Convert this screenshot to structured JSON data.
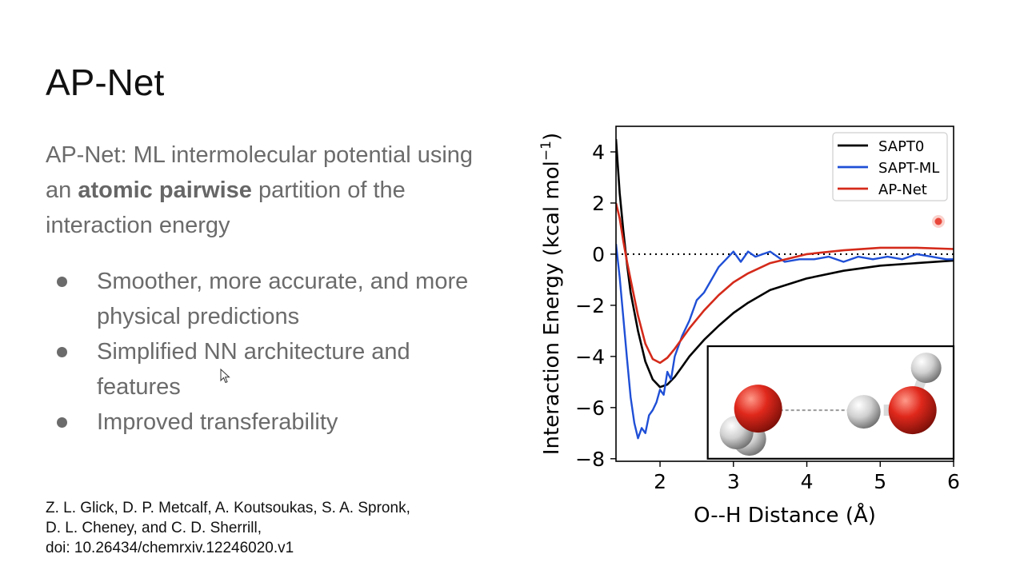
{
  "slide": {
    "title": "AP-Net",
    "subtitle": {
      "before": "AP-Net: ML intermolecular potential using an ",
      "bold": "atomic pairwise",
      "after": " partition of the interaction energy"
    },
    "bullets": [
      "Smoother, more accurate, and more physical predictions",
      "Simplified NN architecture and features",
      "Improved transferability"
    ],
    "citation": {
      "line1": "Z. L. Glick, D. P. Metcalf, A. Koutsoukas, S. A. Spronk,",
      "line2": "D. L. Cheney, and C. D. Sherrill,",
      "line3": "doi: 10.26434/chemrxiv.12246020.v1"
    }
  },
  "chart_data": {
    "type": "line",
    "xlabel": "O--H Distance (Å)",
    "ylabel": "Interaction Energy (kcal mol",
    "ylabel_sup": "−1",
    "ylabel_close": ")",
    "xlim": [
      1.4,
      6.0
    ],
    "ylim": [
      -8.1,
      5.0
    ],
    "xticks": [
      2,
      3,
      4,
      5,
      6
    ],
    "yticks": [
      4,
      2,
      0,
      -2,
      -4,
      -6,
      -8
    ],
    "ytick_labels": [
      "4",
      "2",
      "0",
      "−2",
      "−4",
      "−6",
      "−8"
    ],
    "legend_position": "top-right",
    "zero_line": "dotted",
    "series": [
      {
        "name": "SAPT0",
        "color": "#000000",
        "x": [
          1.4,
          1.45,
          1.5,
          1.55,
          1.6,
          1.7,
          1.8,
          1.9,
          2.0,
          2.1,
          2.2,
          2.3,
          2.4,
          2.6,
          2.8,
          3.0,
          3.2,
          3.5,
          4.0,
          4.5,
          5.0,
          5.5,
          6.0
        ],
        "y": [
          4.5,
          2.4,
          0.9,
          -0.4,
          -1.5,
          -3.0,
          -4.2,
          -4.9,
          -5.2,
          -5.1,
          -4.8,
          -4.4,
          -4.0,
          -3.35,
          -2.8,
          -2.3,
          -1.9,
          -1.4,
          -0.95,
          -0.65,
          -0.45,
          -0.35,
          -0.25
        ]
      },
      {
        "name": "SAPT-ML",
        "color": "#1f4fd6",
        "x": [
          1.4,
          1.45,
          1.5,
          1.55,
          1.6,
          1.65,
          1.7,
          1.75,
          1.8,
          1.85,
          1.9,
          1.95,
          2.0,
          2.05,
          2.1,
          2.15,
          2.2,
          2.3,
          2.4,
          2.5,
          2.6,
          2.7,
          2.8,
          2.9,
          3.0,
          3.1,
          3.2,
          3.3,
          3.4,
          3.5,
          3.7,
          3.9,
          4.1,
          4.3,
          4.5,
          4.7,
          4.9,
          5.1,
          5.3,
          5.5,
          5.7,
          5.9,
          6.0
        ],
        "y": [
          0.4,
          -0.9,
          -2.5,
          -4.1,
          -5.6,
          -6.6,
          -7.2,
          -6.8,
          -7.0,
          -6.3,
          -6.1,
          -5.8,
          -5.3,
          -5.5,
          -4.6,
          -4.9,
          -4.0,
          -3.2,
          -2.6,
          -1.8,
          -1.5,
          -1.0,
          -0.5,
          -0.2,
          0.1,
          -0.3,
          0.1,
          -0.1,
          0.0,
          0.1,
          -0.3,
          -0.2,
          -0.2,
          -0.1,
          -0.3,
          -0.1,
          -0.2,
          -0.1,
          -0.2,
          0.0,
          -0.1,
          -0.2,
          -0.2
        ]
      },
      {
        "name": "AP-Net",
        "color": "#d42a1a",
        "x": [
          1.4,
          1.45,
          1.5,
          1.55,
          1.6,
          1.7,
          1.8,
          1.9,
          2.0,
          2.1,
          2.2,
          2.3,
          2.4,
          2.6,
          2.8,
          3.0,
          3.2,
          3.5,
          4.0,
          4.5,
          5.0,
          5.5,
          6.0
        ],
        "y": [
          2.0,
          1.4,
          0.5,
          -0.3,
          -1.0,
          -2.4,
          -3.5,
          -4.1,
          -4.25,
          -4.05,
          -3.7,
          -3.3,
          -2.9,
          -2.2,
          -1.6,
          -1.1,
          -0.75,
          -0.35,
          0.0,
          0.15,
          0.25,
          0.25,
          0.2
        ]
      }
    ],
    "inset": {
      "x_range": [
        2.65,
        6.0
      ],
      "y_range": [
        -8.0,
        -3.6
      ],
      "molecule_colors": {
        "oxygen": "#e0281c",
        "hydrogen": "#d9d9d9",
        "bond": "#999999"
      }
    }
  },
  "icons": {
    "cursor": "mouse-pointer-icon",
    "recording": "recording-dot-icon"
  }
}
